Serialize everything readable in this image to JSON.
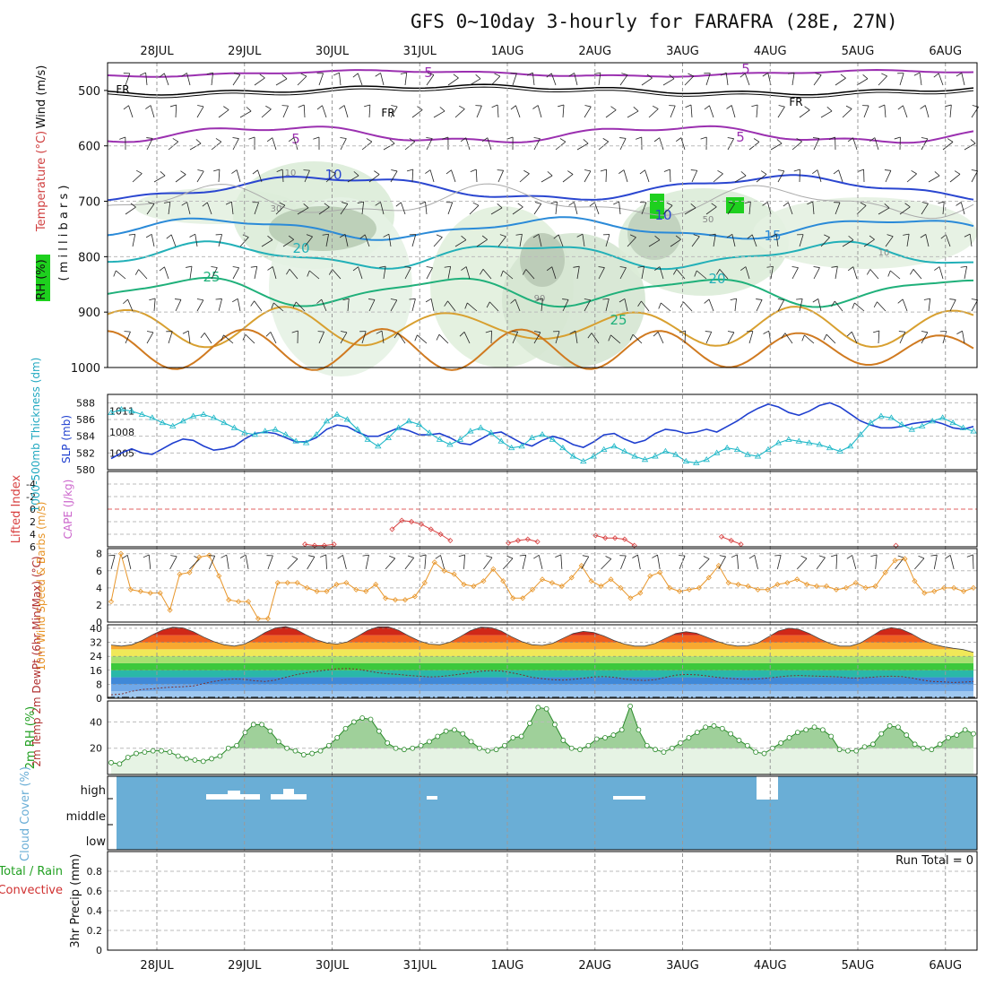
{
  "title": "GFS 0~10day 3-hourly for FARAFRA (28E, 27N)",
  "days": [
    "28JUL",
    "29JUL",
    "30JUL",
    "31JUL",
    "1AUG",
    "2AUG",
    "3AUG",
    "4AUG",
    "5AUG",
    "6AUG"
  ],
  "colors": {
    "rh_green": "#1ed01e",
    "cloud_blue": "#6aaed6",
    "cape": "#cc66cc",
    "slp": "#1f3fcf",
    "thick": "#20b8c8",
    "lifted": "#d84040",
    "wind10": "#e8962a",
    "dewpt": "#808080"
  },
  "chart_data": [
    {
      "type": "contour",
      "panel": "upper-air",
      "ylabel_parts": [
        "RH (%)",
        "Temperature (°C)",
        "Wind (m/s)"
      ],
      "ylabel_mb": "( m i l l i b a r s )",
      "yticks": [
        500,
        600,
        700,
        800,
        900,
        1000
      ],
      "ylim": [
        450,
        1000
      ],
      "temperature_labels": [
        "5",
        "5",
        "5",
        "5",
        "10",
        "10",
        "15",
        "20",
        "20",
        "25",
        "25"
      ],
      "freezing_labels": [
        "FR",
        "FR",
        "FR"
      ],
      "rh_labels": [
        "10",
        "30",
        "50",
        "10",
        "90"
      ]
    },
    {
      "type": "line",
      "panel": "thickness-slp",
      "ylabel_left": "1000-500mb Thickness (dm)",
      "ylabel_right": "SLP (mb)",
      "yticks_left": [
        580,
        582,
        584,
        586,
        588
      ],
      "yticks_right": [
        1005,
        1008,
        1011
      ],
      "series": [
        {
          "name": "SLP (mb)",
          "axis": "right",
          "values": [
            1004.2,
            1005.0,
            1005.6,
            1005.0,
            1004.8,
            1005.6,
            1006.4,
            1007.0,
            1006.8,
            1006.0,
            1005.4,
            1005.6,
            1006.0,
            1007.0,
            1007.8,
            1008.0,
            1007.8,
            1007.2,
            1006.6,
            1006.6,
            1007.2,
            1008.4,
            1009.0,
            1008.8,
            1008.0,
            1007.4,
            1007.4,
            1008.0,
            1008.6,
            1008.2,
            1007.6,
            1007.6,
            1007.8,
            1007.2,
            1006.4,
            1006.2,
            1007.0,
            1007.8,
            1008.0,
            1007.2,
            1006.4,
            1006.0,
            1006.8,
            1007.4,
            1007.0,
            1006.2,
            1005.8,
            1006.6,
            1007.6,
            1007.8,
            1007.0,
            1006.4,
            1006.8,
            1007.8,
            1008.4,
            1008.2,
            1007.8,
            1008.0,
            1008.4,
            1008.0,
            1008.8,
            1009.6,
            1010.6,
            1011.4,
            1012.0,
            1011.6,
            1010.8,
            1010.4,
            1011.0,
            1011.8,
            1012.2,
            1011.6,
            1010.6,
            1009.6,
            1009.0,
            1008.6,
            1008.6,
            1008.8,
            1009.2,
            1009.4,
            1009.6,
            1009.2,
            1008.6,
            1008.4,
            1008.8
          ]
        },
        {
          "name": "1000-500mb Thickness (dm)",
          "axis": "left",
          "values": [
            586.8,
            587.2,
            587.0,
            586.6,
            586.2,
            585.6,
            585.2,
            585.8,
            586.4,
            586.6,
            586.2,
            585.6,
            585.0,
            584.4,
            584.2,
            584.6,
            584.8,
            584.2,
            583.4,
            583.2,
            584.2,
            585.8,
            586.6,
            586.0,
            584.8,
            583.6,
            582.8,
            583.8,
            585.0,
            585.8,
            585.4,
            584.4,
            583.6,
            583.0,
            583.6,
            584.6,
            585.0,
            584.4,
            583.4,
            582.6,
            582.8,
            583.8,
            584.2,
            583.6,
            582.6,
            581.6,
            581.0,
            581.6,
            582.4,
            582.8,
            582.2,
            581.6,
            581.2,
            581.6,
            582.2,
            581.8,
            581.0,
            580.8,
            581.2,
            582.0,
            582.6,
            582.4,
            581.8,
            581.6,
            582.4,
            583.2,
            583.6,
            583.4,
            583.2,
            583.0,
            582.6,
            582.2,
            582.8,
            584.2,
            585.6,
            586.4,
            586.2,
            585.4,
            584.8,
            585.2,
            585.8,
            586.2,
            585.6,
            585.0,
            584.6
          ]
        }
      ]
    },
    {
      "type": "line",
      "panel": "stability",
      "ylabel_left": "Lifted Index",
      "ylabel_right": "CAPE (J/kg)",
      "yticks": [
        -4,
        -2,
        0,
        2,
        4,
        6
      ],
      "ylim": [
        -6,
        6
      ],
      "series": [
        {
          "name": "Lifted Index",
          "values": [
            null,
            null,
            null,
            null,
            null,
            null,
            null,
            null,
            null,
            null,
            null,
            null,
            null,
            null,
            null,
            null,
            null,
            null,
            null,
            null,
            5.6,
            5.8,
            5.8,
            5.6,
            null,
            null,
            null,
            null,
            null,
            3.2,
            1.8,
            2.0,
            2.4,
            3.2,
            4.0,
            5.0,
            null,
            null,
            null,
            null,
            null,
            5.4,
            5.0,
            4.8,
            5.2,
            null,
            null,
            null,
            null,
            null,
            4.2,
            4.6,
            4.6,
            4.8,
            5.8,
            null,
            null,
            null,
            null,
            null,
            null,
            null,
            null,
            4.4,
            5.0,
            5.6,
            null,
            null,
            null,
            null,
            null,
            null,
            null,
            null,
            null,
            null,
            null,
            null,
            null,
            null,
            null,
            5.8,
            null,
            null,
            null,
            null,
            null,
            null,
            null,
            null
          ]
        }
      ]
    },
    {
      "type": "line",
      "panel": "wind10m",
      "ylabel": "10m Wind Speed & Barbs (m/s)",
      "yticks": [
        0,
        2,
        4,
        6,
        8
      ],
      "ylim": [
        0,
        8.6
      ],
      "series": [
        {
          "name": "10m Wind Speed",
          "values": [
            2.4,
            8.0,
            3.8,
            3.6,
            3.4,
            3.4,
            1.4,
            5.6,
            5.8,
            7.6,
            7.8,
            5.4,
            2.6,
            2.4,
            2.4,
            0.4,
            0.4,
            4.6,
            4.6,
            4.6,
            4.0,
            3.6,
            3.6,
            4.4,
            4.6,
            3.8,
            3.6,
            4.4,
            2.8,
            2.6,
            2.6,
            3.0,
            4.6,
            7.0,
            6.0,
            5.6,
            4.4,
            4.2,
            4.8,
            6.2,
            4.8,
            2.8,
            2.8,
            3.8,
            5.0,
            4.6,
            4.2,
            5.2,
            6.6,
            4.8,
            4.2,
            5.0,
            4.0,
            2.8,
            3.4,
            5.4,
            5.8,
            4.0,
            3.6,
            3.8,
            4.0,
            5.2,
            6.6,
            4.6,
            4.4,
            4.2,
            3.8,
            3.8,
            4.4,
            4.6,
            5.0,
            4.4,
            4.2,
            4.2,
            3.8,
            4.0,
            4.6,
            4.0,
            4.2,
            5.8,
            7.2,
            7.4,
            4.8,
            3.4,
            3.6,
            4.0,
            4.0,
            3.6,
            4.0
          ]
        }
      ]
    },
    {
      "type": "area",
      "panel": "temperature2m",
      "ylabel": "2m Temp 2m DewPt (6hr Min/Max) (°C)",
      "yticks": [
        0,
        8,
        16,
        24,
        32,
        40
      ],
      "ylim": [
        0,
        42
      ],
      "series": [
        {
          "name": "2m Temp",
          "values": [
            30.4,
            29.8,
            30.6,
            33.0,
            36.2,
            39.0,
            40.6,
            40.2,
            38.0,
            35.0,
            32.4,
            30.6,
            29.8,
            31.0,
            34.0,
            37.6,
            40.2,
            41.0,
            39.4,
            36.2,
            33.4,
            31.6,
            31.0,
            32.2,
            35.4,
            38.8,
            40.8,
            40.8,
            38.8,
            35.6,
            32.8,
            31.0,
            30.6,
            32.0,
            35.2,
            38.6,
            40.6,
            40.4,
            38.4,
            35.2,
            32.4,
            30.6,
            30.2,
            31.4,
            34.2,
            37.0,
            38.2,
            37.6,
            35.6,
            33.0,
            31.0,
            29.8,
            29.8,
            31.4,
            34.2,
            37.0,
            38.0,
            37.2,
            35.0,
            32.6,
            30.8,
            29.8,
            30.0,
            31.6,
            35.0,
            38.4,
            40.0,
            39.4,
            37.0,
            34.0,
            31.4,
            29.8,
            29.8,
            31.6,
            35.2,
            38.8,
            40.4,
            39.4,
            36.8,
            33.4,
            31.0,
            29.6,
            28.6,
            27.8,
            26.2
          ]
        },
        {
          "name": "2m DewPt",
          "values": [
            2.0,
            2.4,
            4.0,
            5.0,
            5.4,
            6.0,
            6.4,
            6.6,
            7.0,
            8.4,
            9.6,
            10.6,
            11.0,
            10.8,
            10.0,
            9.6,
            10.4,
            12.0,
            13.4,
            14.6,
            15.4,
            16.2,
            16.8,
            17.0,
            16.6,
            15.6,
            14.6,
            14.0,
            13.6,
            13.0,
            12.6,
            12.2,
            12.4,
            13.0,
            13.8,
            14.6,
            15.4,
            15.8,
            15.6,
            14.6,
            13.4,
            12.0,
            11.2,
            10.6,
            10.4,
            10.8,
            11.4,
            12.2,
            12.4,
            12.0,
            11.0,
            10.4,
            10.2,
            10.6,
            12.0,
            13.2,
            13.6,
            13.4,
            12.8,
            12.0,
            11.4,
            11.0,
            10.8,
            11.0,
            11.6,
            12.2,
            12.8,
            13.0,
            12.8,
            12.6,
            12.4,
            12.2,
            11.6,
            11.6,
            12.0,
            12.4,
            12.6,
            12.4,
            11.6,
            10.4,
            9.6,
            9.4,
            9.0,
            9.2,
            9.6
          ]
        }
      ]
    },
    {
      "type": "area",
      "panel": "rh2m",
      "ylabel": "2m RH (%)",
      "yticks": [
        20,
        40
      ],
      "ylim": [
        0,
        56
      ],
      "series": [
        {
          "name": "2m RH",
          "values": [
            9,
            8,
            13,
            16,
            17,
            18,
            18,
            17,
            14,
            12,
            11,
            10,
            12,
            14,
            20,
            22,
            32,
            38,
            38,
            33,
            25,
            20,
            18,
            15,
            16,
            18,
            22,
            28,
            35,
            40,
            43,
            42,
            33,
            24,
            20,
            19,
            20,
            22,
            25,
            29,
            33,
            34,
            31,
            25,
            20,
            18,
            19,
            22,
            28,
            29,
            39,
            51,
            50,
            38,
            26,
            20,
            19,
            22,
            27,
            28,
            30,
            34,
            52,
            34,
            22,
            19,
            17,
            20,
            24,
            28,
            32,
            36,
            37,
            35,
            31,
            26,
            22,
            17,
            16,
            20,
            24,
            28,
            32,
            34,
            36,
            34,
            29,
            19,
            18,
            18,
            21,
            23,
            31,
            37,
            36,
            30,
            23,
            20,
            19,
            23,
            28,
            30,
            34,
            31
          ]
        }
      ]
    },
    {
      "type": "area",
      "panel": "cloudcover",
      "ylabel": "Cloud Cover (%)",
      "ytick_labels": [
        "high",
        "middle",
        "low"
      ]
    },
    {
      "type": "bar",
      "panel": "precip",
      "ylabel_left_parts": [
        "Total / Rain",
        "Convective"
      ],
      "ylabel": "3hr Precip (mm)",
      "yticks": [
        0,
        0.2,
        0.4,
        0.6,
        0.8
      ],
      "ylim": [
        0,
        1
      ],
      "run_total_label": "Run Total = 0"
    }
  ]
}
